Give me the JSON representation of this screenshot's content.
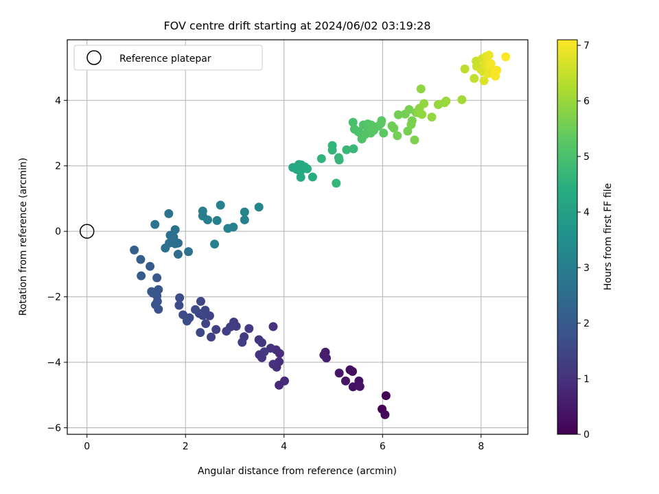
{
  "chart_data": {
    "type": "scatter",
    "title": "FOV centre drift starting at 2024/06/02 03:19:28",
    "xlabel": "Angular distance from reference (arcmin)",
    "ylabel": "Rotation from reference (arcmin)",
    "xlim": [
      -0.4,
      8.95
    ],
    "ylim": [
      -6.2,
      5.85
    ],
    "xticks": [
      "0",
      "2",
      "4",
      "6",
      "8"
    ],
    "yticks": [
      "−6",
      "−4",
      "−2",
      "0",
      "2",
      "4"
    ],
    "xtick_values": [
      0,
      2,
      4,
      6,
      8
    ],
    "ytick_values": [
      -6,
      -4,
      -2,
      0,
      2,
      4
    ],
    "grid": true,
    "legend": {
      "position": "top-left",
      "label": "Reference platepar"
    },
    "reference_point": {
      "x": 0,
      "y": 0
    },
    "colorbar": {
      "label": "Hours from first FF file",
      "range": [
        0,
        7.1
      ],
      "ticks": [
        "0",
        "1",
        "2",
        "3",
        "4",
        "5",
        "6",
        "7"
      ],
      "tick_values": [
        0,
        1,
        2,
        3,
        4,
        5,
        6,
        7
      ],
      "colormap": "viridis"
    },
    "points": [
      {
        "x": 6.07,
        "y": -5.02,
        "c": 0.02
      },
      {
        "x": 5.99,
        "y": -5.43,
        "c": 0.05
      },
      {
        "x": 6.05,
        "y": -5.6,
        "c": 0.08
      },
      {
        "x": 5.39,
        "y": -4.28,
        "c": 0.25
      },
      {
        "x": 5.34,
        "y": -4.23,
        "c": 0.28
      },
      {
        "x": 5.52,
        "y": -4.57,
        "c": 0.3
      },
      {
        "x": 5.4,
        "y": -4.75,
        "c": 0.33
      },
      {
        "x": 5.54,
        "y": -4.74,
        "c": 0.36
      },
      {
        "x": 5.25,
        "y": -4.57,
        "c": 0.4
      },
      {
        "x": 5.12,
        "y": -4.33,
        "c": 0.43
      },
      {
        "x": 4.84,
        "y": -3.69,
        "c": 0.55
      },
      {
        "x": 4.81,
        "y": -3.78,
        "c": 0.58
      },
      {
        "x": 4.86,
        "y": -3.87,
        "c": 0.6
      },
      {
        "x": 3.9,
        "y": -4.7,
        "c": 0.82
      },
      {
        "x": 4.01,
        "y": -4.57,
        "c": 0.85
      },
      {
        "x": 3.85,
        "y": -4.15,
        "c": 0.88
      },
      {
        "x": 3.9,
        "y": -3.98,
        "c": 0.9
      },
      {
        "x": 3.91,
        "y": -3.73,
        "c": 0.92
      },
      {
        "x": 3.84,
        "y": -3.62,
        "c": 0.95
      },
      {
        "x": 3.78,
        "y": -2.91,
        "c": 0.98
      },
      {
        "x": 3.73,
        "y": -3.57,
        "c": 1.0
      },
      {
        "x": 3.78,
        "y": -4.06,
        "c": 1.02
      },
      {
        "x": 3.55,
        "y": -3.86,
        "c": 1.05
      },
      {
        "x": 3.5,
        "y": -3.77,
        "c": 1.08
      },
      {
        "x": 3.55,
        "y": -3.4,
        "c": 1.1
      },
      {
        "x": 3.49,
        "y": -3.31,
        "c": 1.12
      },
      {
        "x": 3.6,
        "y": -3.68,
        "c": 1.14
      },
      {
        "x": 3.29,
        "y": -2.97,
        "c": 1.2
      },
      {
        "x": 3.19,
        "y": -3.22,
        "c": 1.22
      },
      {
        "x": 3.15,
        "y": -3.39,
        "c": 1.24
      },
      {
        "x": 3.03,
        "y": -2.9,
        "c": 1.26
      },
      {
        "x": 2.98,
        "y": -2.77,
        "c": 1.28
      },
      {
        "x": 2.91,
        "y": -2.92,
        "c": 1.3
      },
      {
        "x": 2.83,
        "y": -3.05,
        "c": 1.32
      },
      {
        "x": 2.62,
        "y": -3.0,
        "c": 1.35
      },
      {
        "x": 2.52,
        "y": -3.23,
        "c": 1.38
      },
      {
        "x": 2.49,
        "y": -2.58,
        "c": 1.4
      },
      {
        "x": 2.41,
        "y": -2.82,
        "c": 1.44
      },
      {
        "x": 2.4,
        "y": -2.41,
        "c": 1.46
      },
      {
        "x": 2.35,
        "y": -2.57,
        "c": 1.48
      },
      {
        "x": 2.31,
        "y": -2.14,
        "c": 1.5
      },
      {
        "x": 2.28,
        "y": -2.51,
        "c": 1.52
      },
      {
        "x": 2.3,
        "y": -3.09,
        "c": 1.54
      },
      {
        "x": 2.2,
        "y": -2.39,
        "c": 1.56
      },
      {
        "x": 2.08,
        "y": -2.64,
        "c": 1.58
      },
      {
        "x": 2.03,
        "y": -2.74,
        "c": 1.6
      },
      {
        "x": 1.95,
        "y": -2.55,
        "c": 1.62
      },
      {
        "x": 1.87,
        "y": -2.26,
        "c": 1.64
      },
      {
        "x": 1.88,
        "y": -2.03,
        "c": 1.66
      },
      {
        "x": 1.45,
        "y": -2.38,
        "c": 1.8
      },
      {
        "x": 1.43,
        "y": -2.14,
        "c": 1.82
      },
      {
        "x": 1.39,
        "y": -2.24,
        "c": 1.84
      },
      {
        "x": 1.42,
        "y": -1.97,
        "c": 1.86
      },
      {
        "x": 1.45,
        "y": -1.78,
        "c": 1.88
      },
      {
        "x": 1.34,
        "y": -1.89,
        "c": 1.9
      },
      {
        "x": 1.31,
        "y": -1.84,
        "c": 1.92
      },
      {
        "x": 1.42,
        "y": -1.42,
        "c": 1.94
      },
      {
        "x": 1.28,
        "y": -1.07,
        "c": 2.0
      },
      {
        "x": 1.1,
        "y": -1.36,
        "c": 2.05
      },
      {
        "x": 1.09,
        "y": -0.86,
        "c": 2.1
      },
      {
        "x": 0.96,
        "y": -0.57,
        "c": 2.15
      },
      {
        "x": 1.85,
        "y": -0.7,
        "c": 2.5
      },
      {
        "x": 1.85,
        "y": -0.36,
        "c": 2.52
      },
      {
        "x": 1.79,
        "y": -0.38,
        "c": 2.54
      },
      {
        "x": 1.76,
        "y": -0.18,
        "c": 2.56
      },
      {
        "x": 1.69,
        "y": -0.12,
        "c": 2.58
      },
      {
        "x": 1.67,
        "y": -0.36,
        "c": 2.6
      },
      {
        "x": 1.59,
        "y": -0.51,
        "c": 2.62
      },
      {
        "x": 2.06,
        "y": -0.62,
        "c": 2.64
      },
      {
        "x": 1.79,
        "y": 0.05,
        "c": 2.66
      },
      {
        "x": 1.66,
        "y": 0.54,
        "c": 2.68
      },
      {
        "x": 1.38,
        "y": 0.21,
        "c": 2.7
      },
      {
        "x": 2.35,
        "y": 0.47,
        "c": 3.0
      },
      {
        "x": 2.35,
        "y": 0.62,
        "c": 3.02
      },
      {
        "x": 2.45,
        "y": 0.35,
        "c": 3.04
      },
      {
        "x": 2.59,
        "y": -0.39,
        "c": 3.06
      },
      {
        "x": 2.64,
        "y": 0.33,
        "c": 3.08
      },
      {
        "x": 2.71,
        "y": 0.8,
        "c": 3.1
      },
      {
        "x": 2.86,
        "y": 0.09,
        "c": 3.12
      },
      {
        "x": 2.97,
        "y": 0.13,
        "c": 3.14
      },
      {
        "x": 3.2,
        "y": 0.35,
        "c": 3.16
      },
      {
        "x": 3.2,
        "y": 0.59,
        "c": 3.18
      },
      {
        "x": 3.49,
        "y": 0.74,
        "c": 3.2
      },
      {
        "x": 4.18,
        "y": 1.95,
        "c": 4.2
      },
      {
        "x": 4.26,
        "y": 1.89,
        "c": 4.22
      },
      {
        "x": 4.3,
        "y": 2.04,
        "c": 4.24
      },
      {
        "x": 4.35,
        "y": 2.03,
        "c": 4.26
      },
      {
        "x": 4.33,
        "y": 1.83,
        "c": 4.28
      },
      {
        "x": 4.34,
        "y": 1.65,
        "c": 4.3
      },
      {
        "x": 4.42,
        "y": 1.97,
        "c": 4.32
      },
      {
        "x": 4.47,
        "y": 1.91,
        "c": 4.34
      },
      {
        "x": 4.58,
        "y": 1.66,
        "c": 4.36
      },
      {
        "x": 4.76,
        "y": 2.22,
        "c": 4.6
      },
      {
        "x": 4.98,
        "y": 2.62,
        "c": 4.62
      },
      {
        "x": 4.98,
        "y": 2.48,
        "c": 4.64
      },
      {
        "x": 5.06,
        "y": 1.47,
        "c": 4.66
      },
      {
        "x": 5.11,
        "y": 2.25,
        "c": 4.68
      },
      {
        "x": 5.12,
        "y": 2.18,
        "c": 4.7
      },
      {
        "x": 5.27,
        "y": 2.49,
        "c": 4.72
      },
      {
        "x": 5.41,
        "y": 2.52,
        "c": 4.74
      },
      {
        "x": 5.4,
        "y": 3.33,
        "c": 5.0
      },
      {
        "x": 5.43,
        "y": 3.12,
        "c": 5.02
      },
      {
        "x": 5.5,
        "y": 3.05,
        "c": 5.04
      },
      {
        "x": 5.53,
        "y": 3.02,
        "c": 5.06
      },
      {
        "x": 5.58,
        "y": 2.82,
        "c": 5.08
      },
      {
        "x": 5.61,
        "y": 3.25,
        "c": 5.1
      },
      {
        "x": 5.64,
        "y": 2.95,
        "c": 5.12
      },
      {
        "x": 5.69,
        "y": 3.16,
        "c": 5.14
      },
      {
        "x": 5.7,
        "y": 3.28,
        "c": 5.16
      },
      {
        "x": 5.76,
        "y": 3.0,
        "c": 5.18
      },
      {
        "x": 5.77,
        "y": 3.25,
        "c": 5.2
      },
      {
        "x": 5.82,
        "y": 3.08,
        "c": 5.22
      },
      {
        "x": 5.91,
        "y": 3.21,
        "c": 5.24
      },
      {
        "x": 5.97,
        "y": 3.3,
        "c": 5.26
      },
      {
        "x": 5.98,
        "y": 3.38,
        "c": 5.28
      },
      {
        "x": 6.02,
        "y": 3.0,
        "c": 5.3
      },
      {
        "x": 6.19,
        "y": 3.22,
        "c": 5.5
      },
      {
        "x": 6.23,
        "y": 3.15,
        "c": 5.52
      },
      {
        "x": 6.3,
        "y": 2.92,
        "c": 5.54
      },
      {
        "x": 6.32,
        "y": 3.56,
        "c": 5.56
      },
      {
        "x": 6.46,
        "y": 3.58,
        "c": 5.58
      },
      {
        "x": 6.51,
        "y": 3.06,
        "c": 5.6
      },
      {
        "x": 6.54,
        "y": 3.72,
        "c": 5.62
      },
      {
        "x": 6.58,
        "y": 3.26,
        "c": 5.64
      },
      {
        "x": 6.6,
        "y": 3.38,
        "c": 5.66
      },
      {
        "x": 6.65,
        "y": 2.79,
        "c": 5.68
      },
      {
        "x": 6.68,
        "y": 3.63,
        "c": 5.7
      },
      {
        "x": 6.73,
        "y": 3.62,
        "c": 5.85
      },
      {
        "x": 6.75,
        "y": 3.76,
        "c": 5.87
      },
      {
        "x": 6.78,
        "y": 4.35,
        "c": 5.89
      },
      {
        "x": 6.8,
        "y": 3.57,
        "c": 5.91
      },
      {
        "x": 6.84,
        "y": 3.9,
        "c": 5.93
      },
      {
        "x": 7.0,
        "y": 3.49,
        "c": 5.95
      },
      {
        "x": 7.13,
        "y": 3.87,
        "c": 5.97
      },
      {
        "x": 7.26,
        "y": 3.93,
        "c": 5.99
      },
      {
        "x": 7.29,
        "y": 3.98,
        "c": 6.01
      },
      {
        "x": 7.61,
        "y": 4.02,
        "c": 6.1
      },
      {
        "x": 7.67,
        "y": 4.96,
        "c": 6.4
      },
      {
        "x": 7.86,
        "y": 4.67,
        "c": 6.45
      },
      {
        "x": 7.9,
        "y": 5.2,
        "c": 6.5
      },
      {
        "x": 7.91,
        "y": 5.04,
        "c": 6.55
      },
      {
        "x": 8.0,
        "y": 4.94,
        "c": 6.6
      },
      {
        "x": 8.02,
        "y": 5.27,
        "c": 6.65
      },
      {
        "x": 8.04,
        "y": 4.88,
        "c": 6.7
      },
      {
        "x": 8.06,
        "y": 4.6,
        "c": 6.72
      },
      {
        "x": 8.07,
        "y": 5.07,
        "c": 6.75
      },
      {
        "x": 8.1,
        "y": 5.34,
        "c": 6.8
      },
      {
        "x": 8.12,
        "y": 5.16,
        "c": 6.85
      },
      {
        "x": 8.15,
        "y": 4.82,
        "c": 6.88
      },
      {
        "x": 8.16,
        "y": 5.38,
        "c": 6.9
      },
      {
        "x": 8.18,
        "y": 5.07,
        "c": 6.95
      },
      {
        "x": 8.2,
        "y": 5.12,
        "c": 6.98
      },
      {
        "x": 8.28,
        "y": 4.89,
        "c": 7.0
      },
      {
        "x": 8.29,
        "y": 4.74,
        "c": 7.02
      },
      {
        "x": 8.32,
        "y": 4.92,
        "c": 7.05
      },
      {
        "x": 8.5,
        "y": 5.33,
        "c": 7.08
      }
    ]
  }
}
